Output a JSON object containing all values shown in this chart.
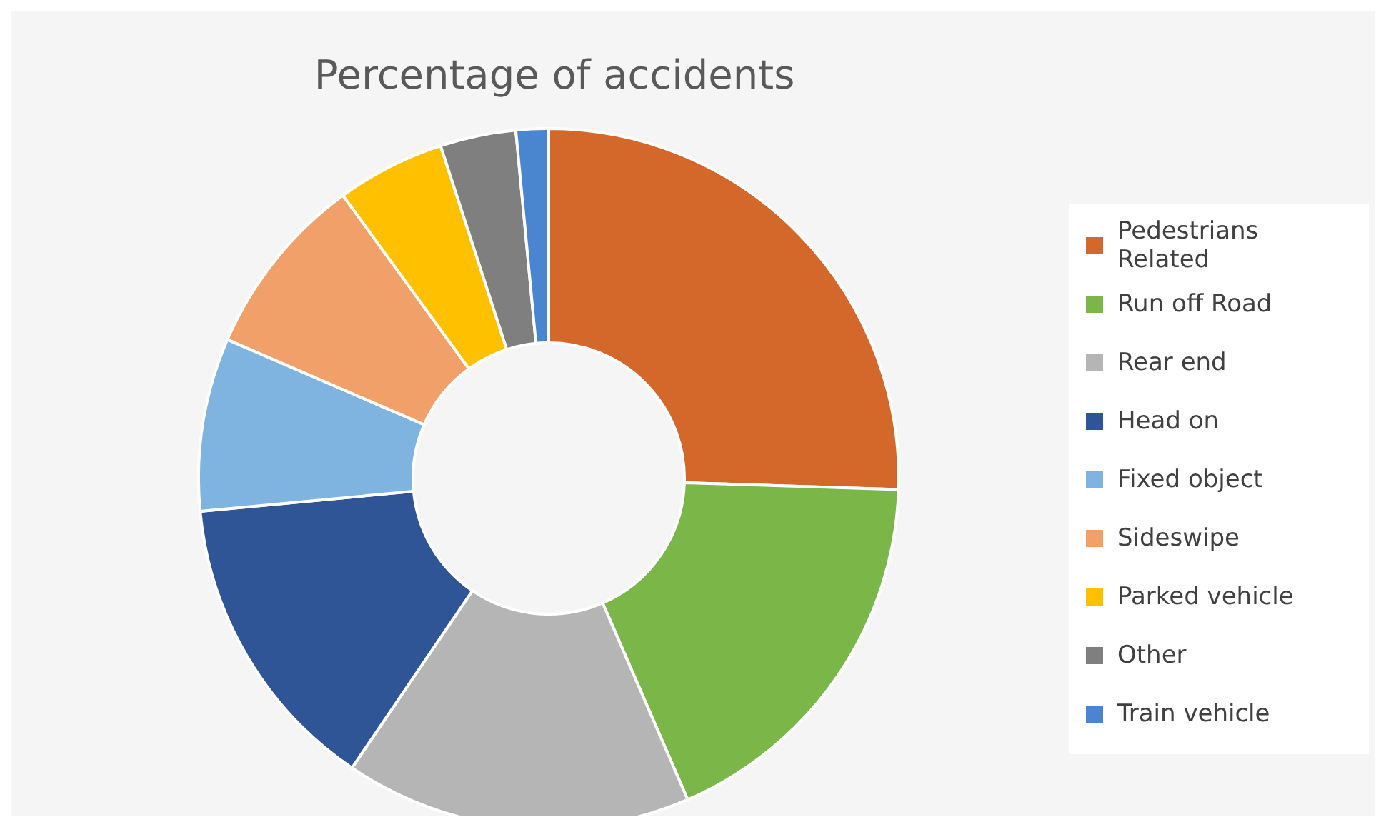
{
  "chart_data": {
    "type": "donut",
    "title": "Percentage of accidents",
    "categories": [
      "Pedestrians Related",
      "Run off Road",
      "Rear end",
      "Head on",
      "Fixed object",
      "Sideswipe",
      "Parked vehicle",
      "Other",
      "Train vehicle"
    ],
    "values": [
      25.5,
      18,
      16,
      14,
      8,
      8.5,
      5,
      3.5,
      1.5
    ],
    "colors": [
      "#d4672a",
      "#7ab648",
      "#b5b5b5",
      "#2f5597",
      "#7fb3e0",
      "#f0a068",
      "#ffc000",
      "#7f7f7f",
      "#4a86d0"
    ],
    "legend": "right"
  }
}
